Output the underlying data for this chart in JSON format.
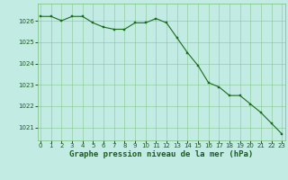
{
  "x": [
    0,
    1,
    2,
    3,
    4,
    5,
    6,
    7,
    8,
    9,
    10,
    11,
    12,
    13,
    14,
    15,
    16,
    17,
    18,
    19,
    20,
    21,
    22,
    23
  ],
  "y": [
    1026.2,
    1026.2,
    1026.0,
    1026.2,
    1026.2,
    1025.9,
    1025.7,
    1025.6,
    1025.6,
    1025.9,
    1025.9,
    1026.1,
    1025.9,
    1025.2,
    1024.5,
    1023.9,
    1023.1,
    1022.9,
    1022.5,
    1022.5,
    1022.1,
    1021.7,
    1021.2,
    1020.7
  ],
  "line_color": "#1a6b1a",
  "marker_color": "#1a6b1a",
  "bg_color": "#c2ebe4",
  "grid_color": "#7bbf7b",
  "title": "Graphe pression niveau de la mer (hPa)",
  "title_color": "#1a5c1a",
  "ylim": [
    1020.4,
    1026.8
  ],
  "yticks": [
    1021,
    1022,
    1023,
    1024,
    1025,
    1026
  ],
  "xticks": [
    0,
    1,
    2,
    3,
    4,
    5,
    6,
    7,
    8,
    9,
    10,
    11,
    12,
    13,
    14,
    15,
    16,
    17,
    18,
    19,
    20,
    21,
    22,
    23
  ],
  "xlim": [
    -0.3,
    23.3
  ],
  "tick_fontsize": 5.0,
  "title_fontsize": 6.5,
  "marker_size": 2.0,
  "line_width": 0.8
}
